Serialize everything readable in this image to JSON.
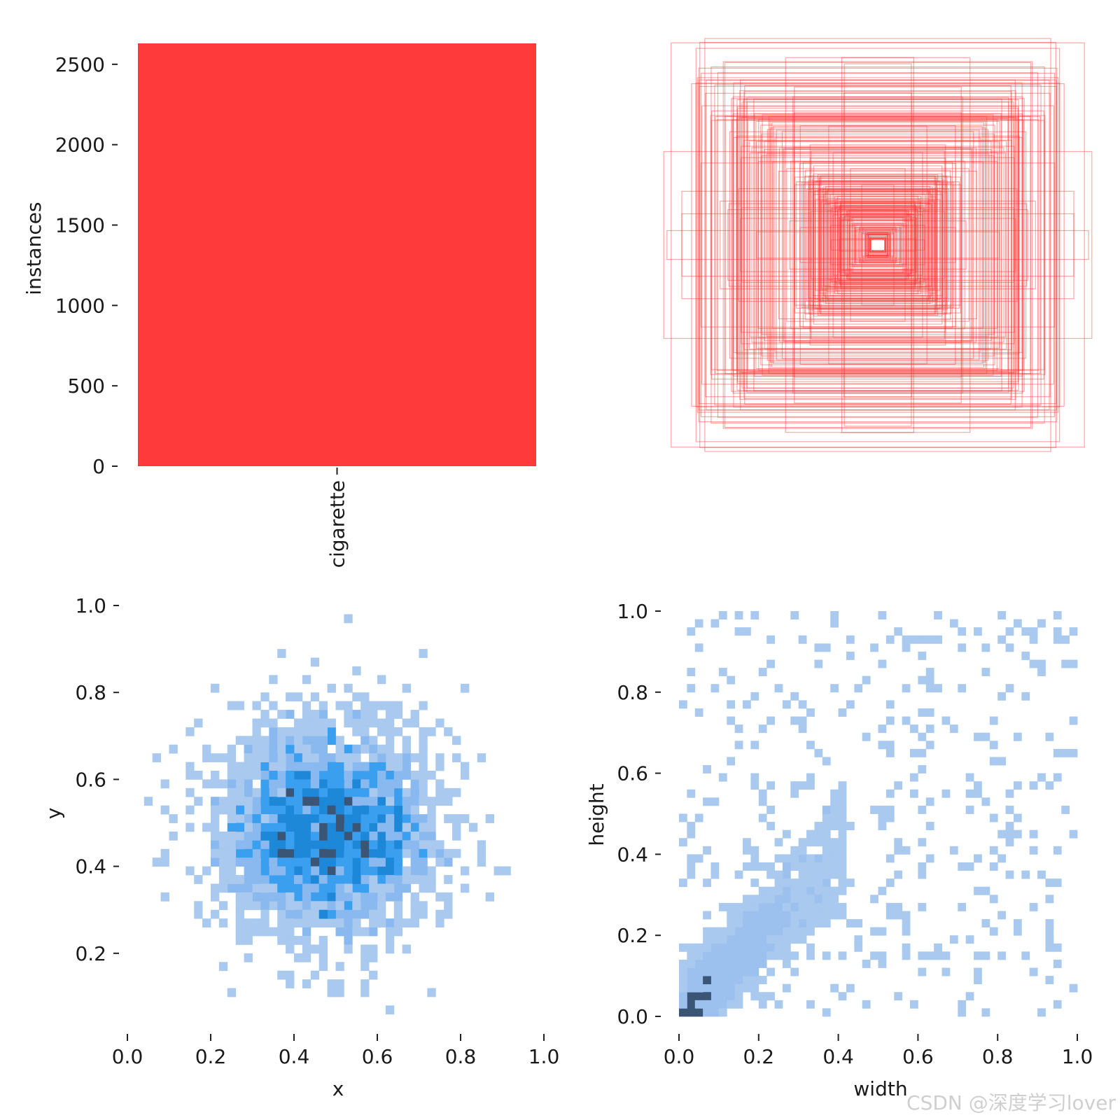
{
  "chart_data": [
    {
      "type": "bar",
      "categories": [
        "cigarette"
      ],
      "values": [
        2630
      ],
      "ylabel": "instances",
      "yticks": [
        0,
        500,
        1000,
        1500,
        2000,
        2500
      ],
      "ylim": [
        0,
        2630
      ],
      "color": "#ff3a3a"
    },
    {
      "type": "other",
      "description_free": true,
      "color": "#ff3a3a"
    },
    {
      "type": "heatmap",
      "xlabel": "x",
      "ylabel": "y",
      "xticks": [
        0.0,
        0.2,
        0.4,
        0.6,
        0.8,
        1.0
      ],
      "yticks": [
        0.2,
        0.4,
        0.6,
        0.8,
        1.0
      ],
      "xlim": [
        0.0,
        1.0
      ],
      "ylim": [
        0.05,
        1.0
      ],
      "bins": 50,
      "center": [
        0.48,
        0.49
      ],
      "spread": [
        0.13,
        0.12
      ],
      "colors": [
        "#a9c9ef",
        "#8ab9ef",
        "#3b9ff0",
        "#1e88d8",
        "#3a5575"
      ]
    },
    {
      "type": "heatmap",
      "xlabel": "width",
      "ylabel": "height",
      "xticks": [
        0.0,
        0.2,
        0.4,
        0.6,
        0.8,
        1.0
      ],
      "yticks": [
        0.0,
        0.2,
        0.4,
        0.6,
        0.8,
        1.0
      ],
      "xlim": [
        0.0,
        1.0
      ],
      "ylim": [
        0.0,
        1.0
      ],
      "bins": 50,
      "colors": [
        "#a9c9ef",
        "#9cc1ee",
        "#3a5575"
      ]
    }
  ],
  "tick_text": {
    "bar_y": [
      "0",
      "500",
      "1000",
      "1500",
      "2000",
      "2500"
    ],
    "unit_x": [
      "0.0",
      "0.2",
      "0.4",
      "0.6",
      "0.8",
      "1.0"
    ],
    "xy_y": [
      "0.2",
      "0.4",
      "0.6",
      "0.8",
      "1.0"
    ],
    "wh_y": [
      "0.0",
      "0.2",
      "0.4",
      "0.6",
      "0.8",
      "1.0"
    ]
  },
  "watermark": "CSDN @深度学习lover"
}
